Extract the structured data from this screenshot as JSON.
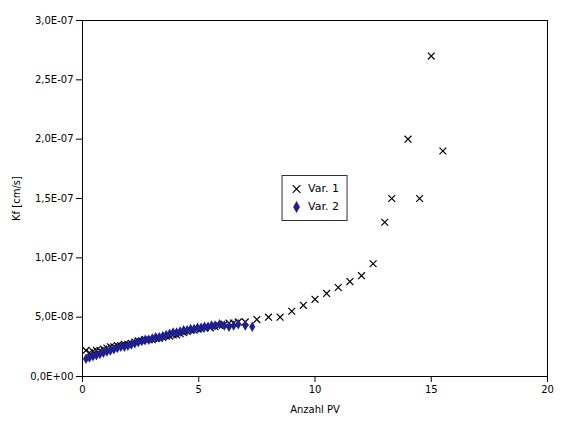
{
  "chart_data": {
    "type": "scatter",
    "xlabel": "Anzahl PV",
    "ylabel": "Kf [cm/s]",
    "xlim": [
      0,
      20
    ],
    "ylim": [
      0,
      3e-07
    ],
    "xticks": [
      0,
      5,
      10,
      15,
      20
    ],
    "yticks": [
      {
        "value": 0,
        "label": "0,0E+00"
      },
      {
        "value": 5e-08,
        "label": "5,0E-08"
      },
      {
        "value": 1e-07,
        "label": "1,0E-07"
      },
      {
        "value": 1.5e-07,
        "label": "1,5E-07"
      },
      {
        "value": 2e-07,
        "label": "2,0E-07"
      },
      {
        "value": 2.5e-07,
        "label": "2,5E-07"
      },
      {
        "value": 3e-07,
        "label": "3,0E-07"
      }
    ],
    "legend": "center",
    "series": [
      {
        "name": "Var. 1",
        "color": "#000000",
        "marker": "x",
        "x": [
          0.15,
          0.3,
          0.45,
          0.6,
          0.75,
          0.9,
          1.05,
          1.2,
          1.35,
          1.5,
          1.65,
          1.8,
          1.95,
          2.1,
          2.25,
          2.4,
          2.55,
          2.7,
          2.85,
          3.0,
          3.15,
          3.3,
          3.45,
          3.6,
          3.75,
          3.9,
          4.05,
          4.2,
          4.35,
          4.5,
          4.65,
          4.8,
          4.95,
          5.1,
          5.25,
          5.5,
          5.7,
          5.9,
          6.1,
          6.3,
          6.5,
          6.7,
          7.0,
          7.5,
          8.0,
          8.5,
          9.0,
          9.5,
          10.0,
          10.5,
          11.0,
          11.5,
          12.0,
          12.5,
          13.0,
          13.3,
          14.0,
          14.5,
          15.0,
          15.5
        ],
        "values": [
          2.2e-08,
          2e-08,
          2.1e-08,
          2.2e-08,
          2.2e-08,
          2.3e-08,
          2.4e-08,
          2.5e-08,
          2.5e-08,
          2.6e-08,
          2.6e-08,
          2.7e-08,
          2.7e-08,
          2.8e-08,
          2.9e-08,
          3e-08,
          3e-08,
          3.1e-08,
          3.1e-08,
          3.1e-08,
          3.2e-08,
          3.2e-08,
          3.3e-08,
          3.4e-08,
          3.4e-08,
          3.5e-08,
          3.5e-08,
          3.6e-08,
          3.7e-08,
          3.8e-08,
          3.9e-08,
          3.9e-08,
          4e-08,
          4e-08,
          4.1e-08,
          4.1e-08,
          4.2e-08,
          4.3e-08,
          4.4e-08,
          4.5e-08,
          4.5e-08,
          4.6e-08,
          4.6e-08,
          4.8e-08,
          5e-08,
          5e-08,
          5.5e-08,
          6e-08,
          6.5e-08,
          7e-08,
          7.5e-08,
          8e-08,
          8.5e-08,
          9.5e-08,
          1.3e-07,
          1.5e-07,
          2e-07,
          1.5e-07,
          2.7e-07,
          1.9e-07
        ]
      },
      {
        "name": "Var. 2",
        "color": "#1F1F8F",
        "marker": "diamond",
        "x": [
          0.15,
          0.3,
          0.45,
          0.6,
          0.75,
          0.9,
          1.05,
          1.2,
          1.35,
          1.5,
          1.65,
          1.8,
          1.95,
          2.1,
          2.25,
          2.4,
          2.55,
          2.7,
          2.85,
          3.0,
          3.15,
          3.3,
          3.45,
          3.6,
          3.75,
          3.9,
          4.05,
          4.2,
          4.35,
          4.5,
          4.65,
          4.8,
          4.95,
          5.1,
          5.25,
          5.4,
          5.55,
          5.7,
          5.9,
          6.1,
          6.3,
          6.5,
          6.7,
          7.0,
          7.3
        ],
        "values": [
          1.5e-08,
          1.6e-08,
          1.7e-08,
          1.8e-08,
          1.9e-08,
          2e-08,
          2.1e-08,
          2.2e-08,
          2.3e-08,
          2.4e-08,
          2.5e-08,
          2.5e-08,
          2.6e-08,
          2.7e-08,
          2.8e-08,
          2.9e-08,
          3e-08,
          3.1e-08,
          3.1e-08,
          3.2e-08,
          3.3e-08,
          3.3e-08,
          3.4e-08,
          3.5e-08,
          3.6e-08,
          3.7e-08,
          3.7e-08,
          3.8e-08,
          3.9e-08,
          3.9e-08,
          4e-08,
          4e-08,
          4.1e-08,
          4.1e-08,
          4.2e-08,
          4.2e-08,
          4.3e-08,
          4.3e-08,
          4.4e-08,
          4.3e-08,
          4.2e-08,
          4.3e-08,
          4.4e-08,
          4.3e-08,
          4.2e-08
        ]
      }
    ]
  }
}
